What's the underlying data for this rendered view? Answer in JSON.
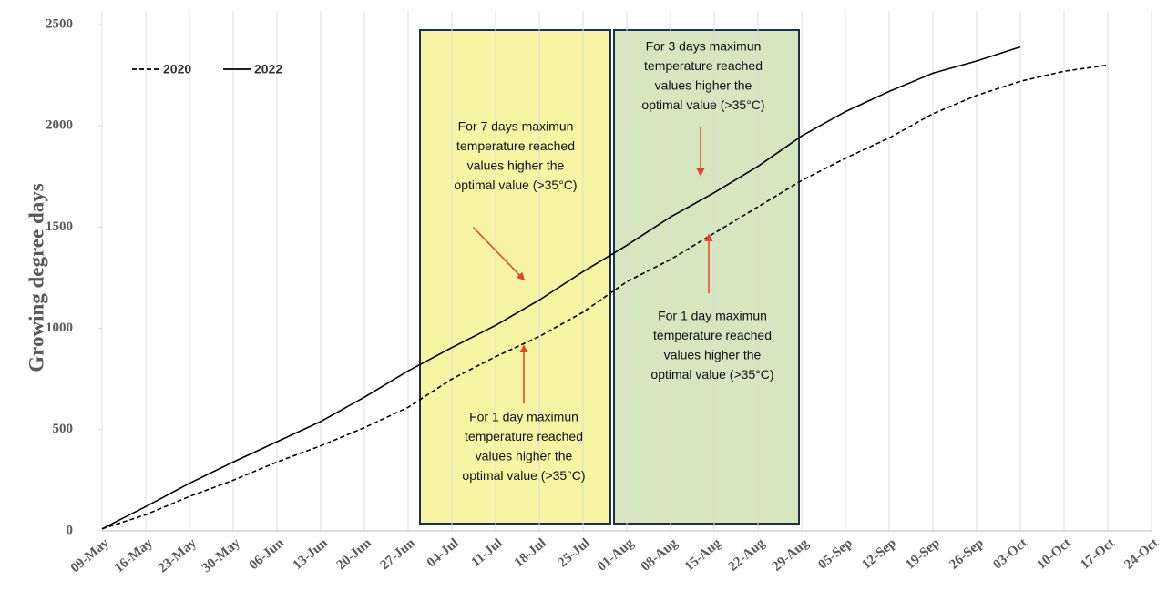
{
  "chart_data": {
    "type": "line",
    "y_label": "Growing degree days",
    "categories": [
      "09-May",
      "16-May",
      "23-May",
      "30-May",
      "06-Jun",
      "13-Jun",
      "20-Jun",
      "27-Jun",
      "04-Jul",
      "11-Jul",
      "18-Jul",
      "25-Jul",
      "01-Aug",
      "08-Aug",
      "15-Aug",
      "22-Aug",
      "29-Aug",
      "05-Sep",
      "12-Sep",
      "19-Sep",
      "26-Sep",
      "03-Oct",
      "10-Oct",
      "17-Oct",
      "24-Oct"
    ],
    "series": [
      {
        "name": "2020",
        "color": "#000000",
        "dash": true,
        "values": [
          10,
          80,
          170,
          250,
          340,
          420,
          510,
          610,
          750,
          860,
          960,
          1080,
          1230,
          1340,
          1470,
          1600,
          1730,
          1840,
          1940,
          2060,
          2150,
          2220,
          2270,
          2300,
          null
        ]
      },
      {
        "name": "2022",
        "color": "#000000",
        "dash": false,
        "values": [
          10,
          120,
          235,
          340,
          440,
          540,
          660,
          790,
          905,
          1015,
          1140,
          1280,
          1410,
          1550,
          1670,
          1800,
          1950,
          2070,
          2170,
          2260,
          2320,
          2390,
          null,
          null,
          null
        ]
      }
    ],
    "ylim": [
      0,
      2500
    ],
    "yticks": [
      0,
      500,
      1000,
      1500,
      2000,
      2500
    ],
    "grid": "x",
    "legend": "upper left",
    "annotations": [
      {
        "lines": [
          "For 7 days maximun",
          "temperature reached",
          "values higher the",
          "optimal value (>35°C)"
        ]
      },
      {
        "lines": [
          "For 1 day maximun",
          "temperature reached",
          "values higher the",
          "optimal value (>35°C)"
        ]
      },
      {
        "lines": [
          "For 3 days maximun",
          "temperature reached",
          "values higher the",
          "optimal value (>35°C)"
        ]
      },
      {
        "lines": [
          "For 1 day maximun",
          "temperature reached",
          "values higher the",
          "optimal value (>35°C)"
        ]
      }
    ]
  }
}
